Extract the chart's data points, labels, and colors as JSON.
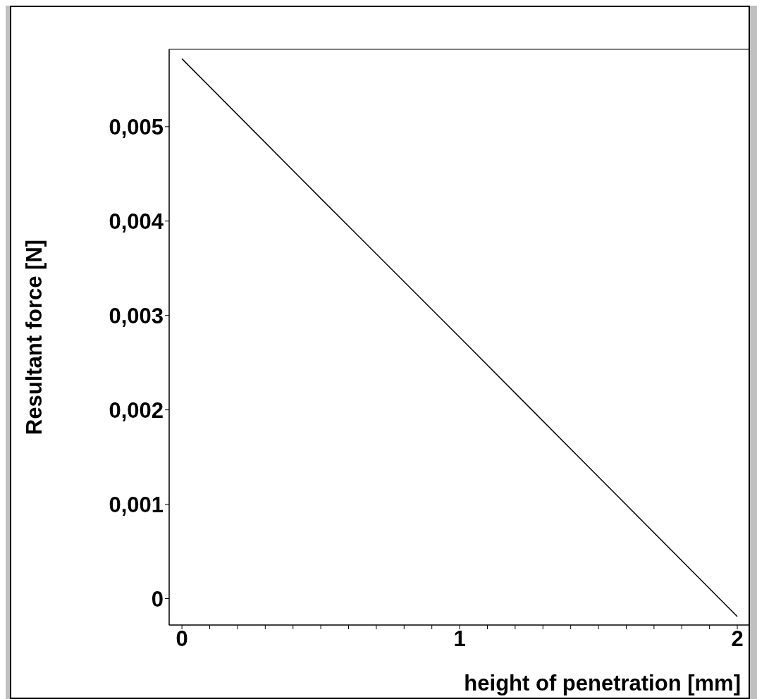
{
  "chart_data": {
    "type": "line",
    "xlabel": "height of penetration [mm]",
    "ylabel": "Resultant force [N]",
    "x": [
      0,
      0.5,
      1,
      1.5,
      2
    ],
    "series": [
      {
        "color": "#000000",
        "values": [
          0.00572,
          0.00424,
          0.00277,
          0.00129,
          -0.00019
        ]
      }
    ],
    "xlim": [
      -0.046,
      2.043
    ],
    "xticks": [
      0,
      {
        "value": 0.1,
        "label": null
      },
      {
        "value": 0.2,
        "label": null
      },
      {
        "value": 0.3,
        "label": null
      },
      {
        "value": 0.4,
        "label": null
      },
      {
        "value": 0.5,
        "label": null
      },
      {
        "value": 0.6,
        "label": null
      },
      {
        "value": 0.7,
        "label": null
      },
      {
        "value": 0.8,
        "label": null
      },
      {
        "value": 0.9,
        "label": null
      },
      1,
      {
        "value": 1.1,
        "label": null
      },
      {
        "value": 1.2,
        "label": null
      },
      {
        "value": 1.3,
        "label": null
      },
      {
        "value": 1.4,
        "label": null
      },
      {
        "value": 1.5,
        "label": null
      },
      {
        "value": 1.6,
        "label": null
      },
      {
        "value": 1.7,
        "label": null
      },
      {
        "value": 1.8,
        "label": null
      },
      {
        "value": 1.9,
        "label": null
      },
      2
    ],
    "ylim": [
      -0.00028,
      0.00582
    ],
    "yticks": [
      {
        "value": 0,
        "label": "0"
      },
      {
        "value": 0.001,
        "label": "0,001"
      },
      {
        "value": 0.002,
        "label": "0,002"
      },
      {
        "value": 0.003,
        "label": "0,003"
      },
      {
        "value": 0.004,
        "label": "0,004"
      },
      {
        "value": 0.005,
        "label": "0,005"
      }
    ],
    "grid": false,
    "legend": false,
    "marker": "none",
    "line_style": "solid"
  }
}
